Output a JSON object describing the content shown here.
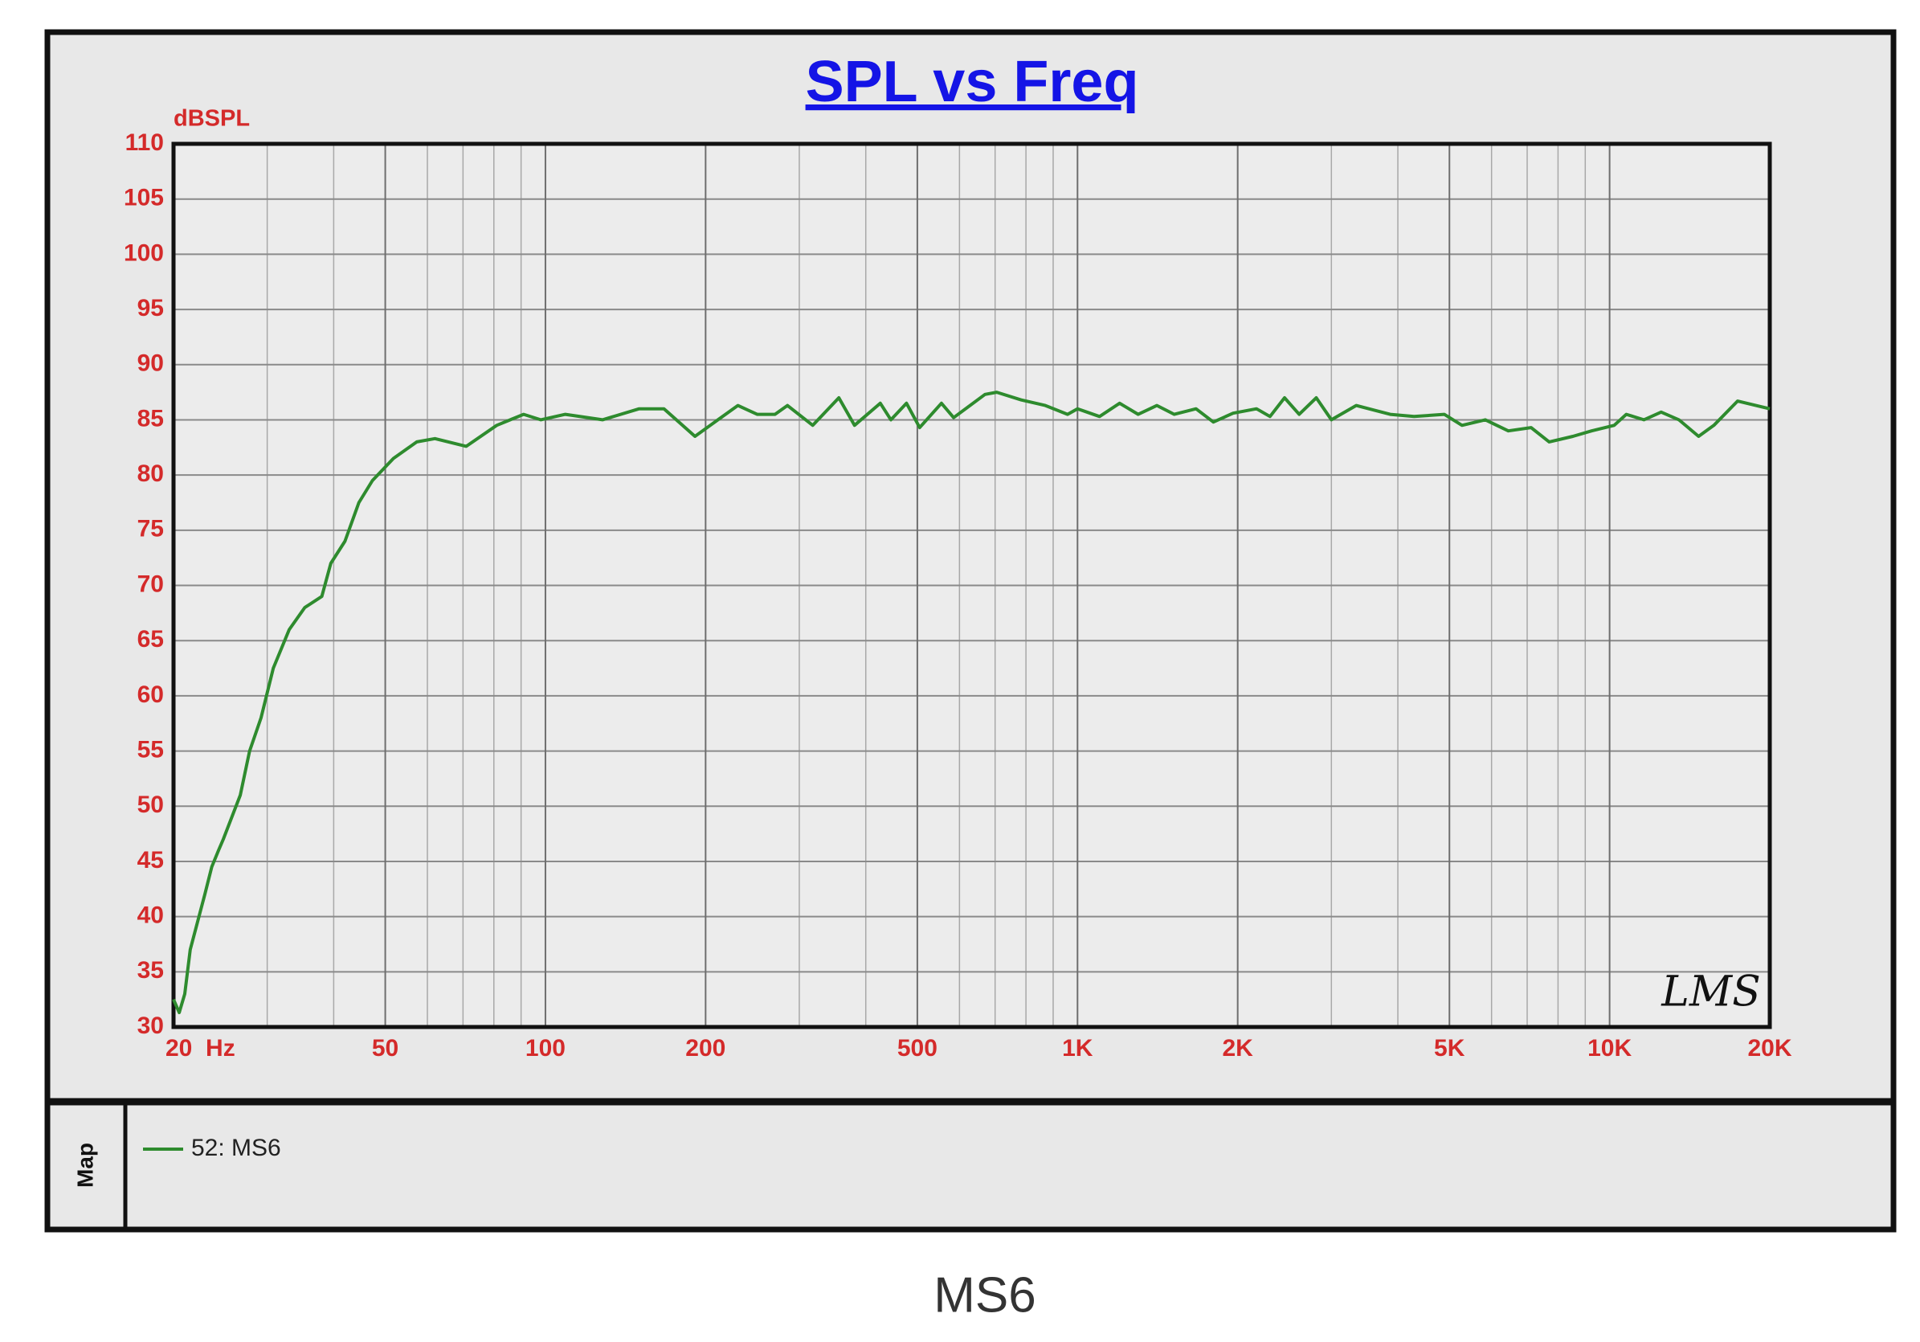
{
  "chart_data": {
    "type": "line",
    "title": "SPL vs Freq",
    "y_label": "dBSPL",
    "logo": "LMS",
    "legend_title": "Map",
    "caption": "MS6",
    "x_scale": "log",
    "grid": true,
    "xlim": [
      20,
      20000
    ],
    "ylim": [
      30,
      110
    ],
    "xticks": [
      {
        "value": 20,
        "label": "20  Hz"
      },
      50,
      100,
      200,
      500,
      {
        "value": 1000,
        "label": "1K"
      },
      {
        "value": 2000,
        "label": "2K"
      },
      {
        "value": 5000,
        "label": "5K"
      },
      {
        "value": 10000,
        "label": "10K"
      },
      {
        "value": 20000,
        "label": "20K"
      }
    ],
    "minor_xticks": [
      30,
      40,
      60,
      70,
      80,
      90,
      300,
      400,
      600,
      700,
      800,
      900,
      3000,
      4000,
      6000,
      7000,
      8000,
      9000
    ],
    "yticks": [
      30,
      35,
      40,
      45,
      50,
      55,
      60,
      65,
      70,
      75,
      80,
      85,
      90,
      95,
      100,
      105,
      110
    ],
    "x": [
      20,
      20.5,
      21,
      21.5,
      22.9,
      23.6,
      24.3,
      24.8,
      26.7,
      27.8,
      29.2,
      30.8,
      33,
      35.3,
      38,
      39.5,
      42,
      44.6,
      47.3,
      51.8,
      57.3,
      62,
      71,
      81,
      91,
      98,
      109,
      128,
      150,
      167,
      191,
      218,
      230,
      250,
      270,
      285,
      318,
      356,
      381,
      426,
      446,
      477,
      505,
      555,
      585,
      670,
      705,
      784,
      870,
      958,
      1000,
      1100,
      1200,
      1300,
      1410,
      1520,
      1670,
      1800,
      1960,
      2170,
      2300,
      2450,
      2610,
      2810,
      3000,
      3340,
      3870,
      4290,
      4890,
      5280,
      5840,
      6450,
      7120,
      7700,
      8530,
      9250,
      10200,
      10750,
      11600,
      12500,
      13500,
      14700,
      15700,
      17400,
      20000
    ],
    "series": [
      {
        "name": "52: MS6",
        "color": "#2e8b2e",
        "values": [
          32.5,
          31.3,
          33,
          37,
          42,
          44.5,
          46,
          47,
          51,
          55,
          58,
          62.5,
          66,
          68,
          69,
          72,
          74,
          77.5,
          79.5,
          81.5,
          83,
          83.3,
          82.6,
          84.5,
          85.5,
          85,
          85.5,
          85,
          86,
          86,
          83.5,
          85.5,
          86.3,
          85.5,
          85.5,
          86.3,
          84.5,
          87,
          84.5,
          86.5,
          85,
          86.5,
          84.3,
          86.5,
          85.2,
          87.3,
          87.5,
          86.8,
          86.3,
          85.5,
          86,
          85.3,
          86.5,
          85.5,
          86.3,
          85.5,
          86,
          84.8,
          85.6,
          86,
          85.3,
          87,
          85.5,
          87,
          85,
          86.3,
          85.5,
          85.3,
          85.5,
          84.5,
          85,
          84,
          84.3,
          83,
          83.5,
          84,
          84.5,
          85.5,
          85,
          85.7,
          85,
          83.5,
          84.5,
          86.7,
          86
        ]
      }
    ]
  }
}
